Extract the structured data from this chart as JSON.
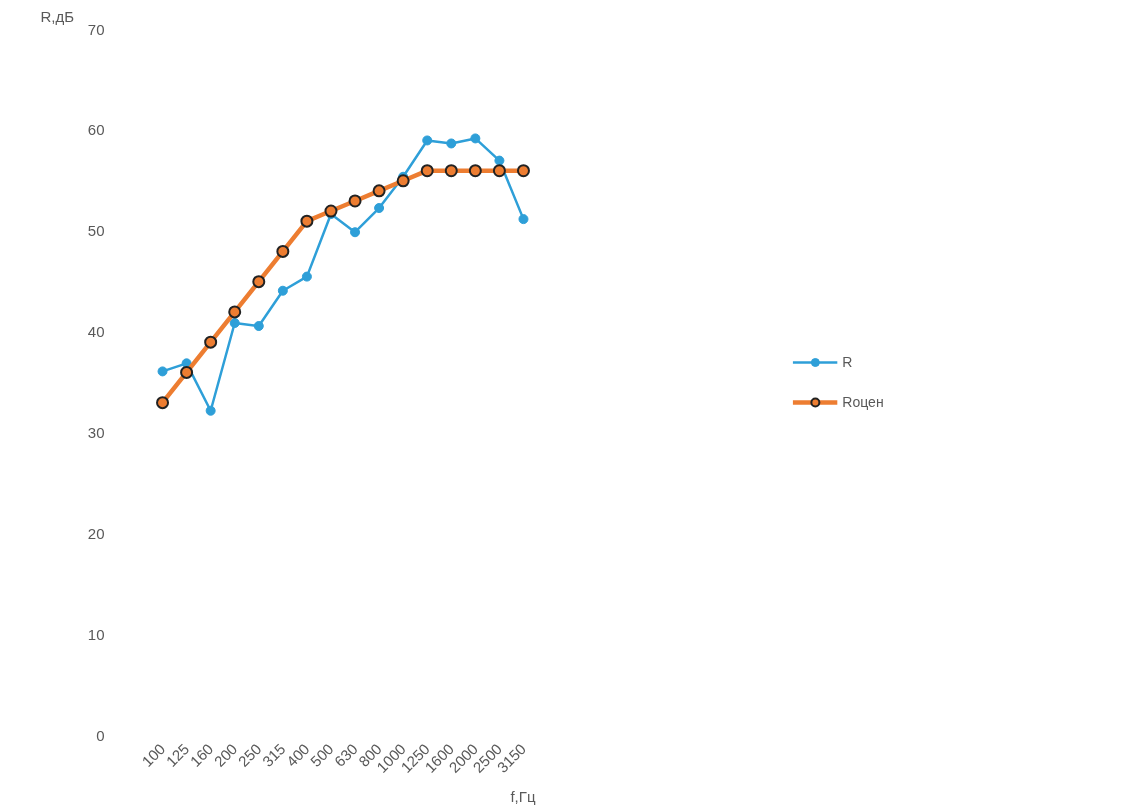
{
  "chart_data": {
    "type": "line",
    "xlabel": "f,Гц",
    "ylabel": "R,дБ",
    "categories": [
      "100",
      "125",
      "160",
      "200",
      "250",
      "315",
      "400",
      "500",
      "630",
      "800",
      "1000",
      "1250",
      "1600",
      "2000",
      "2500",
      "3150"
    ],
    "series": [
      {
        "name": "R",
        "color": "#2e9fd8",
        "values": [
          36.1,
          36.9,
          32.2,
          40.9,
          40.6,
          44.1,
          45.5,
          51.7,
          49.9,
          52.3,
          55.4,
          59.0,
          58.7,
          59.2,
          57.0,
          51.2
        ]
      },
      {
        "name": "Rоцен",
        "color": "#ed7d31",
        "values": [
          33,
          36,
          39,
          42,
          45,
          48,
          51,
          52,
          53,
          54,
          55,
          56,
          56,
          56,
          56,
          56
        ]
      }
    ],
    "ylim": [
      0,
      70
    ],
    "yticks": [
      0,
      10,
      20,
      30,
      40,
      50,
      60,
      70
    ],
    "marker": "circle",
    "legend": "right"
  }
}
